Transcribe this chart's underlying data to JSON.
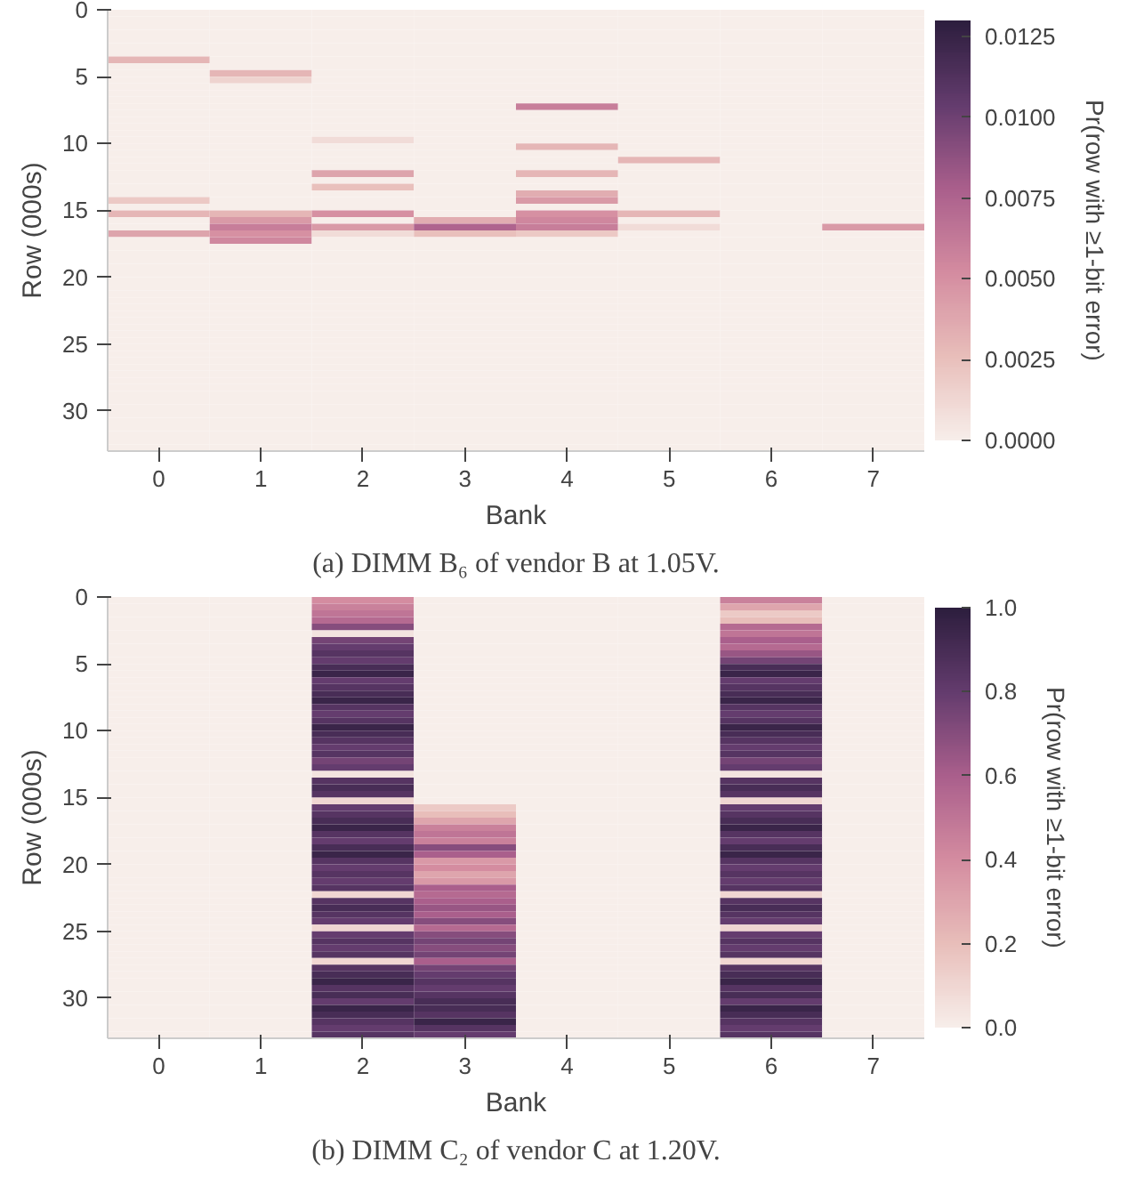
{
  "chart_data": [
    {
      "type": "heatmap",
      "title": "(a) DIMM B₆ of vendor B at 1.05V.",
      "xlabel": "Bank",
      "ylabel": "Row (000s)",
      "clabel": "Pr(row with ≥1-bit error)",
      "categories": [
        "0",
        "1",
        "2",
        "3",
        "4",
        "5",
        "6",
        "7"
      ],
      "ylim": [
        33,
        0
      ],
      "yticks": [
        0,
        5,
        10,
        15,
        20,
        25,
        30
      ],
      "clim": [
        0,
        0.013
      ],
      "cticks": [
        {
          "value": 0,
          "label": "0.0000"
        },
        {
          "value": 0.0025,
          "label": "0.0025"
        },
        {
          "value": 0.005,
          "label": "0.0050"
        },
        {
          "value": 0.0075,
          "label": "0.0075"
        },
        {
          "value": 0.01,
          "label": "0.0100"
        },
        {
          "value": 0.0125,
          "label": "0.0125"
        }
      ],
      "cells": [
        [
          0,
          0,
          0,
          0,
          0,
          0,
          0,
          0
        ],
        [
          0,
          0,
          0,
          0,
          0,
          0,
          0,
          0
        ],
        [
          0,
          0,
          0,
          0,
          0,
          0,
          0,
          0
        ],
        [
          0,
          0,
          0,
          0,
          0,
          0,
          0,
          0
        ],
        [
          0,
          0,
          0,
          0,
          0,
          0,
          0,
          0
        ],
        [
          0,
          0,
          0,
          0,
          0,
          0,
          0,
          0
        ],
        [
          0,
          0,
          0,
          0,
          0,
          0,
          0,
          0
        ],
        [
          0.003,
          0,
          0,
          0,
          0,
          0,
          0,
          0
        ],
        [
          0,
          0,
          0,
          0,
          0,
          0,
          0,
          0
        ],
        [
          0,
          0.003,
          0,
          0,
          0,
          0,
          0,
          0
        ],
        [
          0,
          0.0015,
          0,
          0,
          0,
          0,
          0,
          0
        ],
        [
          0,
          0,
          0,
          0,
          0,
          0,
          0,
          0
        ],
        [
          0,
          0,
          0,
          0,
          0,
          0,
          0,
          0
        ],
        [
          0,
          0,
          0,
          0,
          0,
          0,
          0,
          0
        ],
        [
          0,
          0,
          0,
          0,
          0.006,
          0,
          0,
          0
        ],
        [
          0,
          0,
          0,
          0,
          0,
          0,
          0,
          0
        ],
        [
          0,
          0,
          0,
          0,
          0,
          0,
          0,
          0
        ],
        [
          0,
          0,
          0,
          0,
          0,
          0,
          0,
          0
        ],
        [
          0,
          0,
          0,
          0,
          0,
          0,
          0,
          0
        ],
        [
          0,
          0,
          0.001,
          0,
          0,
          0,
          0,
          0
        ],
        [
          0,
          0,
          0,
          0,
          0.003,
          0,
          0,
          0
        ],
        [
          0,
          0,
          0,
          0,
          0,
          0,
          0,
          0
        ],
        [
          0,
          0,
          0,
          0,
          0,
          0.003,
          0,
          0
        ],
        [
          0,
          0,
          0,
          0,
          0,
          0,
          0,
          0
        ],
        [
          0,
          0,
          0.004,
          0,
          0.003,
          0,
          0,
          0
        ],
        [
          0,
          0,
          0,
          0,
          0,
          0,
          0,
          0
        ],
        [
          0,
          0,
          0.0025,
          0,
          0,
          0,
          0,
          0
        ],
        [
          0,
          0,
          0,
          0,
          0.0035,
          0,
          0,
          0
        ],
        [
          0.002,
          0,
          0,
          0,
          0.0045,
          0,
          0,
          0
        ],
        [
          0,
          0,
          0,
          0,
          0,
          0,
          0,
          0
        ],
        [
          0.003,
          0.003,
          0.005,
          0,
          0.005,
          0.003,
          0,
          0
        ],
        [
          0,
          0.0045,
          0,
          0.0035,
          0.0055,
          0,
          0,
          0
        ],
        [
          0,
          0.006,
          0.0045,
          0.0075,
          0.006,
          0.001,
          0,
          0.0045
        ],
        [
          0.004,
          0.005,
          0.001,
          0.0025,
          0.002,
          0,
          0,
          0
        ],
        [
          0,
          0.0055,
          0,
          0,
          0,
          0,
          0,
          0
        ],
        [
          0,
          0,
          0,
          0,
          0,
          0,
          0,
          0
        ],
        [
          0,
          0,
          0,
          0,
          0,
          0,
          0,
          0
        ],
        [
          0,
          0,
          0,
          0,
          0,
          0,
          0,
          0
        ],
        [
          0,
          0,
          0,
          0,
          0,
          0,
          0,
          0
        ],
        [
          0,
          0,
          0,
          0,
          0,
          0,
          0,
          0
        ],
        [
          0,
          0,
          0,
          0,
          0,
          0,
          0,
          0
        ],
        [
          0,
          0,
          0,
          0,
          0,
          0,
          0,
          0
        ],
        [
          0,
          0,
          0,
          0,
          0,
          0,
          0,
          0
        ],
        [
          0,
          0,
          0,
          0,
          0,
          0,
          0,
          0
        ],
        [
          0,
          0,
          0,
          0,
          0,
          0,
          0,
          0
        ],
        [
          0,
          0,
          0,
          0,
          0,
          0,
          0,
          0
        ],
        [
          0,
          0,
          0,
          0,
          0,
          0,
          0,
          0
        ],
        [
          0,
          0,
          0,
          0,
          0,
          0,
          0,
          0
        ],
        [
          0,
          0,
          0,
          0,
          0,
          0,
          0,
          0
        ],
        [
          0,
          0,
          0,
          0,
          0,
          0,
          0,
          0
        ],
        [
          0,
          0,
          0,
          0,
          0,
          0,
          0,
          0
        ],
        [
          0,
          0,
          0,
          0,
          0,
          0,
          0,
          0
        ],
        [
          0,
          0,
          0,
          0,
          0,
          0,
          0,
          0
        ],
        [
          0,
          0,
          0,
          0,
          0,
          0,
          0,
          0
        ],
        [
          0,
          0,
          0,
          0,
          0,
          0,
          0,
          0
        ],
        [
          0,
          0,
          0,
          0,
          0,
          0,
          0,
          0
        ],
        [
          0,
          0,
          0,
          0,
          0,
          0,
          0,
          0
        ],
        [
          0,
          0,
          0,
          0,
          0,
          0,
          0,
          0
        ],
        [
          0,
          0,
          0,
          0,
          0,
          0,
          0,
          0
        ],
        [
          0,
          0,
          0,
          0,
          0,
          0,
          0,
          0
        ],
        [
          0,
          0,
          0,
          0,
          0,
          0,
          0,
          0
        ],
        [
          0,
          0,
          0,
          0,
          0,
          0,
          0,
          0
        ],
        [
          0,
          0,
          0,
          0,
          0,
          0,
          0,
          0
        ],
        [
          0,
          0,
          0,
          0,
          0,
          0,
          0,
          0
        ],
        [
          0,
          0,
          0,
          0,
          0,
          0,
          0,
          0
        ],
        [
          0,
          0,
          0,
          0,
          0,
          0,
          0,
          0
        ]
      ]
    },
    {
      "type": "heatmap",
      "title": "(b) DIMM C₂ of vendor C at 1.20V.",
      "xlabel": "Bank",
      "ylabel": "Row (000s)",
      "clabel": "Pr(row with ≥1-bit error)",
      "categories": [
        "0",
        "1",
        "2",
        "3",
        "4",
        "5",
        "6",
        "7"
      ],
      "ylim": [
        33,
        0
      ],
      "yticks": [
        0,
        5,
        10,
        15,
        20,
        25,
        30
      ],
      "clim": [
        0,
        1
      ],
      "cticks": [
        {
          "value": 0,
          "label": "0.0"
        },
        {
          "value": 0.2,
          "label": "0.2"
        },
        {
          "value": 0.4,
          "label": "0.4"
        },
        {
          "value": 0.6,
          "label": "0.6"
        },
        {
          "value": 0.8,
          "label": "0.8"
        },
        {
          "value": 1,
          "label": "1.0"
        }
      ],
      "cells": [
        [
          0,
          0,
          0.4,
          0,
          0,
          0,
          0.45,
          0
        ],
        [
          0,
          0,
          0.45,
          0,
          0,
          0,
          0.3,
          0
        ],
        [
          0,
          0,
          0.5,
          0,
          0,
          0,
          0.15,
          0
        ],
        [
          0,
          0,
          0.55,
          0,
          0,
          0,
          0.2,
          0
        ],
        [
          0,
          0,
          0.7,
          0,
          0,
          0,
          0.55,
          0
        ],
        [
          0,
          0,
          0.05,
          0,
          0,
          0,
          0.5,
          0
        ],
        [
          0,
          0,
          0.75,
          0,
          0,
          0,
          0.6,
          0
        ],
        [
          0,
          0,
          0.8,
          0,
          0,
          0,
          0.55,
          0
        ],
        [
          0,
          0,
          0.85,
          0,
          0,
          0,
          0.65,
          0
        ],
        [
          0,
          0,
          0.8,
          0,
          0,
          0,
          0.75,
          0
        ],
        [
          0,
          0,
          0.9,
          0,
          0,
          0,
          0.9,
          0
        ],
        [
          0,
          0,
          0.95,
          0,
          0,
          0,
          0.95,
          0
        ],
        [
          0,
          0,
          0.8,
          0,
          0,
          0,
          0.8,
          0
        ],
        [
          0,
          0,
          0.85,
          0,
          0,
          0,
          0.85,
          0
        ],
        [
          0,
          0,
          0.9,
          0,
          0,
          0,
          0.9,
          0
        ],
        [
          0,
          0,
          0.95,
          0,
          0,
          0,
          0.95,
          0
        ],
        [
          0,
          0,
          0.85,
          0,
          0,
          0,
          0.85,
          0
        ],
        [
          0,
          0,
          0.8,
          0,
          0,
          0,
          0.8,
          0
        ],
        [
          0,
          0,
          0.85,
          0,
          0,
          0,
          0.85,
          0
        ],
        [
          0,
          0,
          0.95,
          0,
          0,
          0,
          0.95,
          0
        ],
        [
          0,
          0,
          0.9,
          0,
          0,
          0,
          0.9,
          0
        ],
        [
          0,
          0,
          0.85,
          0,
          0,
          0,
          0.85,
          0
        ],
        [
          0,
          0,
          0.8,
          0,
          0,
          0,
          0.8,
          0
        ],
        [
          0,
          0,
          0.85,
          0,
          0,
          0,
          0.85,
          0
        ],
        [
          0,
          0,
          0.75,
          0,
          0,
          0,
          0.75,
          0
        ],
        [
          0,
          0,
          0.8,
          0,
          0,
          0,
          0.8,
          0
        ],
        [
          0,
          0,
          0.05,
          0,
          0,
          0,
          0.05,
          0
        ],
        [
          0,
          0,
          0.85,
          0,
          0,
          0,
          0.85,
          0
        ],
        [
          0,
          0,
          0.9,
          0,
          0,
          0,
          0.9,
          0
        ],
        [
          0,
          0,
          0.85,
          0,
          0,
          0,
          0.85,
          0
        ],
        [
          0,
          0,
          0.1,
          0,
          0,
          0,
          0.1,
          0
        ],
        [
          0,
          0,
          0.8,
          0.15,
          0,
          0,
          0.8,
          0
        ],
        [
          0,
          0,
          0.85,
          0.2,
          0,
          0,
          0.85,
          0
        ],
        [
          0,
          0,
          0.9,
          0.3,
          0,
          0,
          0.9,
          0
        ],
        [
          0,
          0,
          0.95,
          0.45,
          0,
          0,
          0.95,
          0
        ],
        [
          0,
          0,
          0.85,
          0.5,
          0,
          0,
          0.85,
          0
        ],
        [
          0,
          0,
          0.8,
          0.45,
          0,
          0,
          0.8,
          0
        ],
        [
          0,
          0,
          0.9,
          0.7,
          0,
          0,
          0.9,
          0
        ],
        [
          0,
          0,
          0.95,
          0.6,
          0,
          0,
          0.95,
          0
        ],
        [
          0,
          0,
          0.85,
          0.35,
          0,
          0,
          0.85,
          0
        ],
        [
          0,
          0,
          0.8,
          0.4,
          0,
          0,
          0.8,
          0
        ],
        [
          0,
          0,
          0.85,
          0.3,
          0,
          0,
          0.85,
          0
        ],
        [
          0,
          0,
          0.8,
          0.35,
          0,
          0,
          0.8,
          0
        ],
        [
          0,
          0,
          0.85,
          0.6,
          0,
          0,
          0.85,
          0
        ],
        [
          0,
          0,
          0.1,
          0.55,
          0,
          0,
          0.1,
          0
        ],
        [
          0,
          0,
          0.85,
          0.6,
          0,
          0,
          0.85,
          0
        ],
        [
          0,
          0,
          0.9,
          0.65,
          0,
          0,
          0.9,
          0
        ],
        [
          0,
          0,
          0.85,
          0.6,
          0,
          0,
          0.85,
          0
        ],
        [
          0,
          0,
          0.8,
          0.7,
          0,
          0,
          0.8,
          0
        ],
        [
          0,
          0,
          0.1,
          0.55,
          0,
          0,
          0.1,
          0
        ],
        [
          0,
          0,
          0.8,
          0.7,
          0,
          0,
          0.8,
          0
        ],
        [
          0,
          0,
          0.85,
          0.75,
          0,
          0,
          0.85,
          0
        ],
        [
          0,
          0,
          0.8,
          0.7,
          0,
          0,
          0.8,
          0
        ],
        [
          0,
          0,
          0.85,
          0.75,
          0,
          0,
          0.85,
          0
        ],
        [
          0,
          0,
          0.1,
          0.6,
          0,
          0,
          0.1,
          0
        ],
        [
          0,
          0,
          0.85,
          0.75,
          0,
          0,
          0.85,
          0
        ],
        [
          0,
          0,
          0.9,
          0.8,
          0,
          0,
          0.9,
          0
        ],
        [
          0,
          0,
          0.95,
          0.85,
          0,
          0,
          0.95,
          0
        ],
        [
          0,
          0,
          0.85,
          0.8,
          0,
          0,
          0.85,
          0
        ],
        [
          0,
          0,
          0.9,
          0.85,
          0,
          0,
          0.9,
          0
        ],
        [
          0,
          0,
          0.8,
          0.9,
          0,
          0,
          0.8,
          0
        ],
        [
          0,
          0,
          0.95,
          0.9,
          0,
          0,
          0.95,
          0
        ],
        [
          0,
          0,
          0.9,
          0.85,
          0,
          0,
          0.9,
          0
        ],
        [
          0,
          0,
          0.85,
          0.95,
          0,
          0,
          0.85,
          0
        ],
        [
          0,
          0,
          0.8,
          0.85,
          0,
          0,
          0.8,
          0
        ],
        [
          0,
          0,
          0.85,
          0.8,
          0,
          0,
          0.85,
          0
        ]
      ]
    }
  ]
}
